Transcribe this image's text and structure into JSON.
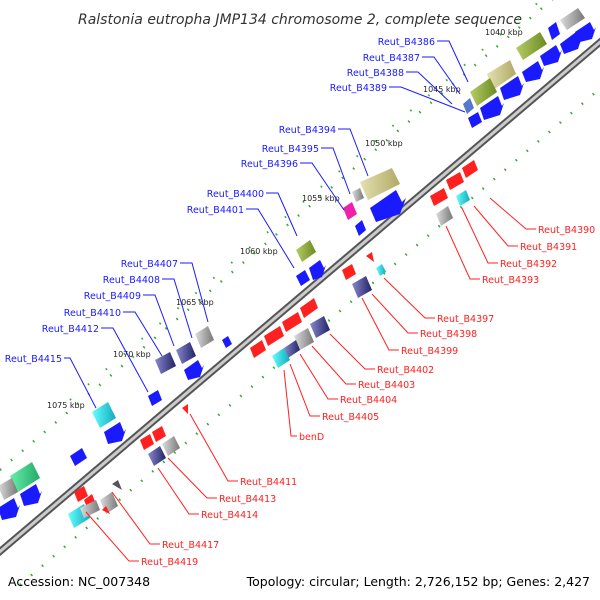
{
  "title": "Ralstonia eutropha JMP134 chromosome 2, complete sequence",
  "footer": {
    "accession": "Accession: NC_007348",
    "topology": "Topology: circular; Length: 2,726,152 bp; Genes: 2,427"
  },
  "scale_labels": [
    "1040 kbp",
    "1045 kbp",
    "1050 kbp",
    "1055 kbp",
    "1060 kbp",
    "1065 kbp",
    "1070 kbp",
    "1075 kbp"
  ],
  "colors": {
    "forward": "#1a1aff",
    "reverse": "#ff2020",
    "backbone": "#999999",
    "tick": "#33aa33",
    "olive": "#8aaa33",
    "khaki": "#cdc88a",
    "cyan": "#33dddd",
    "navy": "#333388",
    "gray": "#999999",
    "magenta": "#ee22aa",
    "green": "#33cc77"
  },
  "forward_genes": [
    "Reut_B4386",
    "Reut_B4387",
    "Reut_B4388",
    "Reut_B4389",
    "Reut_B4394",
    "Reut_B4395",
    "Reut_B4396",
    "Reut_B4400",
    "Reut_B4401",
    "Reut_B4407",
    "Reut_B4408",
    "Reut_B4409",
    "Reut_B4410",
    "Reut_B4412",
    "Reut_B4415"
  ],
  "reverse_genes": [
    "Reut_B4390",
    "Reut_B4391",
    "Reut_B4392",
    "Reut_B4393",
    "Reut_B4397",
    "Reut_B4398",
    "Reut_B4399",
    "Reut_B4402",
    "Reut_B4403",
    "Reut_B4404",
    "Reut_B4405",
    "benD",
    "Reut_B4411",
    "Reut_B4413",
    "Reut_B4414",
    "Reut_B4417",
    "Reut_B4419"
  ]
}
